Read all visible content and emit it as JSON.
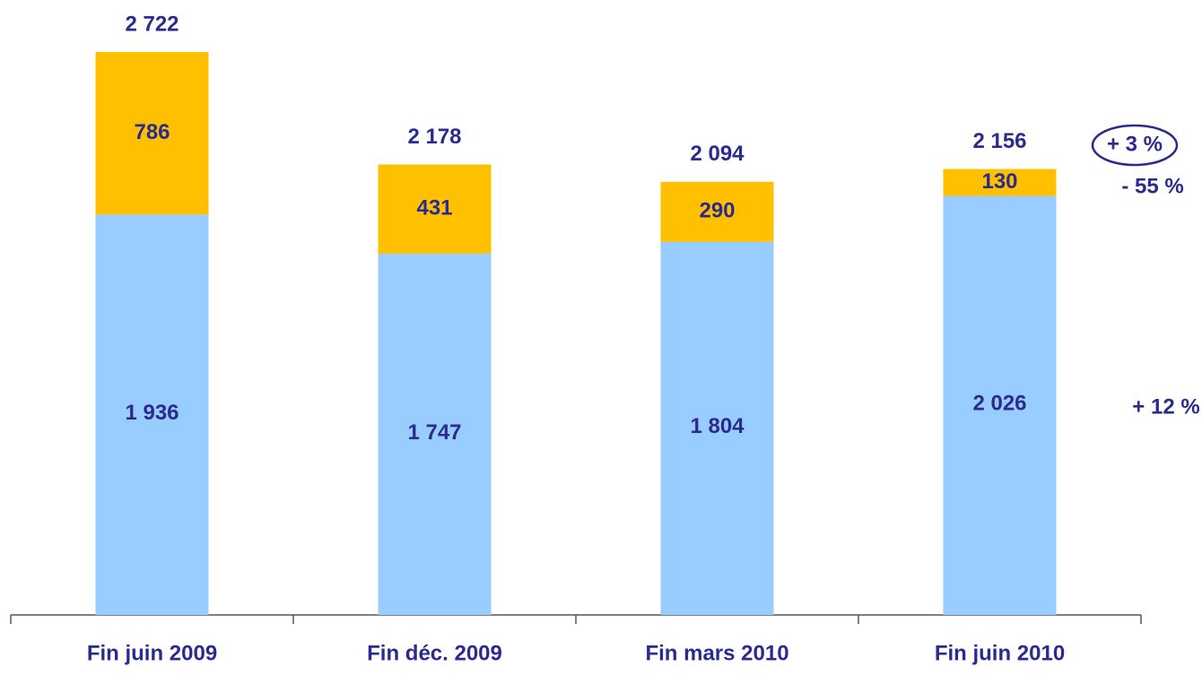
{
  "chart_data": {
    "type": "stacked_bar",
    "categories": [
      "Fin juin 2009",
      "Fin déc. 2009",
      "Fin mars 2010",
      "Fin juin 2010"
    ],
    "series": [
      {
        "color": "#99ccff",
        "values": [
          1936,
          1747,
          1804,
          2026
        ],
        "value_labels": [
          "1 936",
          "1 747",
          "1 804",
          "2 026"
        ]
      },
      {
        "color": "#ffc000",
        "values": [
          786,
          431,
          290,
          130
        ],
        "value_labels": [
          "786",
          "431",
          "290",
          "130"
        ]
      }
    ],
    "totals": [
      2722,
      2178,
      2094,
      2156
    ],
    "total_labels": [
      "2 722",
      "2 178",
      "2 094",
      "2 156"
    ],
    "annotations": [
      {
        "text": "+ 3 %",
        "circled": true
      },
      {
        "text": "- 55 %"
      },
      {
        "text": "+ 12 %"
      }
    ]
  }
}
